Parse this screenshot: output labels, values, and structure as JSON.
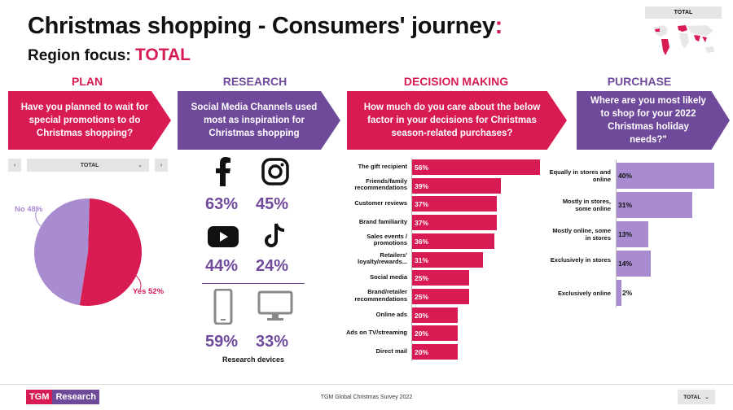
{
  "header": {
    "title": "Christmas shopping - Consumers' journey",
    "title_colon": ":",
    "region_prefix": "Region focus: ",
    "region": "TOTAL"
  },
  "map_label": "TOTAL",
  "colors": {
    "pink": "#d81b53",
    "purple": "#6f4a9b",
    "lilac": "#a98bd0"
  },
  "sections": {
    "plan": {
      "heading": "PLAN",
      "question": "Have you planned to wait for special promotions to do Christmas shopping?",
      "filter": {
        "prev": "‹",
        "value": "TOTAL",
        "caret": "⌄",
        "next": "›"
      }
    },
    "research": {
      "heading": "RESEARCH",
      "question": "Social Media Channels used most as inspiration for Christmas shopping",
      "devices_label": "Research devices"
    },
    "decision": {
      "heading": "DECISION MAKING",
      "question": "How much do you care about the below factor in your decisions for Christmas season-related purchases?"
    },
    "purchase": {
      "heading": "PURCHASE",
      "question": "Where are you most likely to shop for your 2022 Christmas holiday needs?\""
    }
  },
  "chart_data": [
    {
      "id": "plan_pie",
      "type": "pie",
      "title": "Have you planned to wait for special promotions to do Christmas shopping?",
      "labels": [
        "Yes",
        "No"
      ],
      "values": [
        52,
        48
      ],
      "display": [
        "Yes 52%",
        "No 48%"
      ],
      "colors": [
        "#d81b53",
        "#a98bd0"
      ]
    },
    {
      "id": "research_channels",
      "type": "table",
      "title": "Social Media Channels used most as inspiration for Christmas shopping",
      "items": [
        {
          "icon": "facebook-icon",
          "label": "63%",
          "value": 63
        },
        {
          "icon": "instagram-icon",
          "label": "45%",
          "value": 45
        },
        {
          "icon": "youtube-icon",
          "label": "44%",
          "value": 44
        },
        {
          "icon": "tiktok-icon",
          "label": "24%",
          "value": 24
        }
      ],
      "devices": [
        {
          "icon": "smartphone-icon",
          "label": "59%",
          "value": 59
        },
        {
          "icon": "desktop-icon",
          "label": "33%",
          "value": 33
        }
      ]
    },
    {
      "id": "decision_bars",
      "type": "bar",
      "orientation": "horizontal",
      "title": "How much do you care about the below factor in your decisions for Christmas season-related purchases?",
      "categories": [
        "The gift recipient",
        "Friends/family recommendations",
        "Customer reviews",
        "Brand familiarity",
        "Sales events / promotions",
        "Retailers' loyalty/rewards...",
        "Social media",
        "Brand/retailer recommendations",
        "Online ads",
        "Ads on TV/streaming",
        "Direct mail"
      ],
      "values": [
        56,
        39,
        37,
        37,
        36,
        31,
        25,
        25,
        20,
        20,
        20
      ],
      "value_labels": [
        "56%",
        "39%",
        "37%",
        "37%",
        "36%",
        "31%",
        "25%",
        "25%",
        "20%",
        "20%",
        "20%"
      ],
      "xlim": [
        0,
        56
      ],
      "color": "#d81b53"
    },
    {
      "id": "purchase_bars",
      "type": "bar",
      "orientation": "horizontal",
      "title": "Where are you most likely to shop for your 2022 Christmas holiday needs?\"",
      "categories": [
        "Equally in stores and online",
        "Mostly in stores, some online",
        "Mostly online, some in stores",
        "Exclusively in stores",
        "Exclusively online"
      ],
      "values": [
        40,
        31,
        13,
        14,
        2
      ],
      "value_labels": [
        "40%",
        "31%",
        "13%",
        "14%",
        "2%"
      ],
      "xlim": [
        0,
        40
      ],
      "color": "#a98bd0"
    }
  ],
  "footer": {
    "logo_left": "TGM",
    "logo_right": "Research",
    "survey": "TGM Global Christmas Survey 2022",
    "select_value": "TOTAL",
    "select_caret": "⌄"
  }
}
